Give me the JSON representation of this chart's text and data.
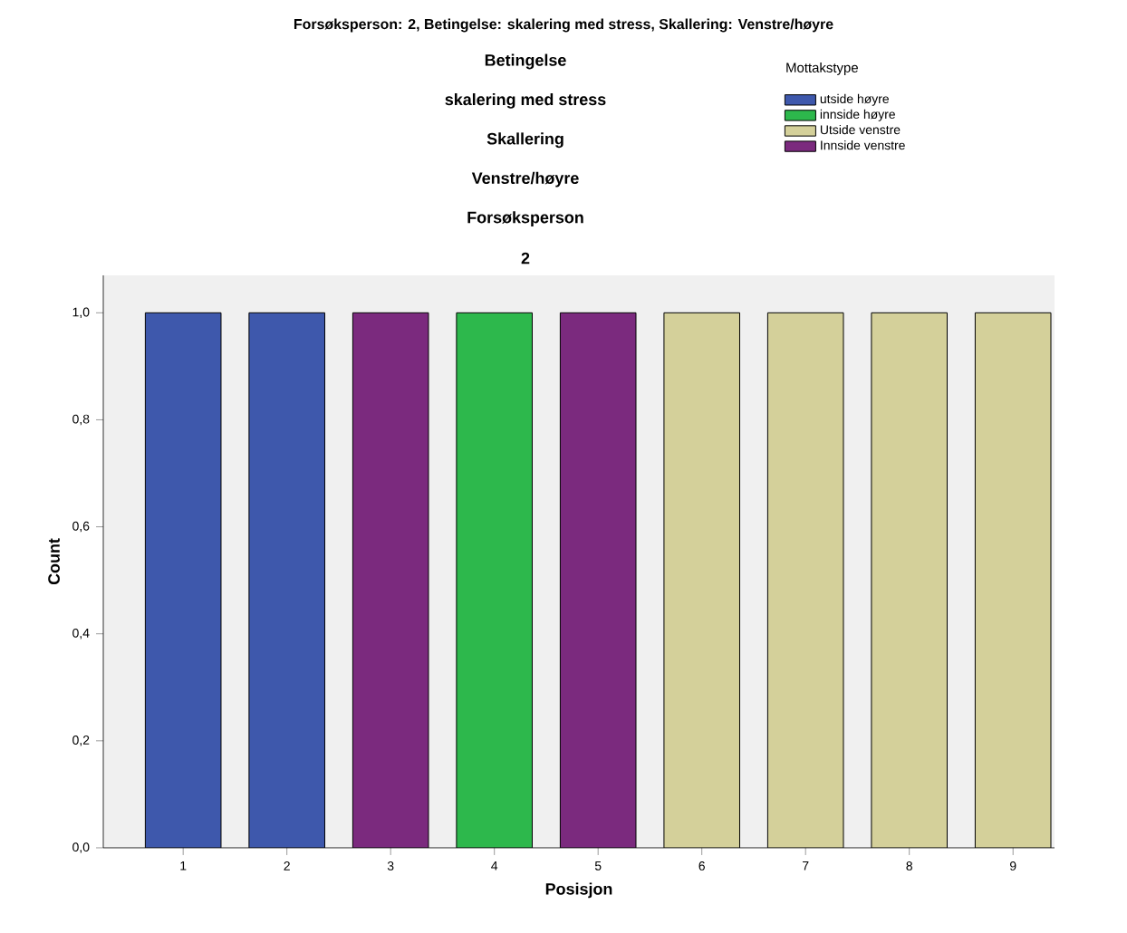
{
  "chart_data": {
    "type": "bar",
    "title": "Forsøksperson: 2, Betingelse: skalering med stress, Skallering: Venstre/høyre",
    "annotations": [
      "Betingelse",
      "skalering med stress",
      "Skallering",
      "Venstre/høyre",
      "Forsøksperson",
      "2"
    ],
    "xlabel": "Posisjon",
    "ylabel": "Count",
    "legend_title": "Mottakstype",
    "categories": [
      "1",
      "2",
      "3",
      "4",
      "5",
      "6",
      "7",
      "8",
      "9"
    ],
    "series": [
      {
        "name": "utside høyre",
        "color": "#3e58ac",
        "values": [
          1.0,
          1.0,
          null,
          null,
          null,
          null,
          null,
          null,
          null
        ]
      },
      {
        "name": "innside høyre",
        "color": "#2db84c",
        "values": [
          null,
          null,
          null,
          1.0,
          null,
          null,
          null,
          null,
          null
        ]
      },
      {
        "name": "Utside venstre",
        "color": "#d4d09a",
        "values": [
          null,
          null,
          null,
          null,
          null,
          1.0,
          1.0,
          1.0,
          1.0
        ]
      },
      {
        "name": "Innside venstre",
        "color": "#7b2a7e",
        "values": [
          null,
          null,
          1.0,
          null,
          1.0,
          null,
          null,
          null,
          null
        ]
      }
    ],
    "ylim": [
      0,
      1.07
    ],
    "yticks": [
      {
        "value": 0,
        "label": "0,0"
      },
      {
        "value": 0.2,
        "label": "0,2"
      },
      {
        "value": 0.4,
        "label": "0,4"
      },
      {
        "value": 0.6,
        "label": "0,6"
      },
      {
        "value": 0.8,
        "label": "0,8"
      },
      {
        "value": 1.0,
        "label": "1,0"
      }
    ],
    "grid": false,
    "legend": "top right"
  }
}
